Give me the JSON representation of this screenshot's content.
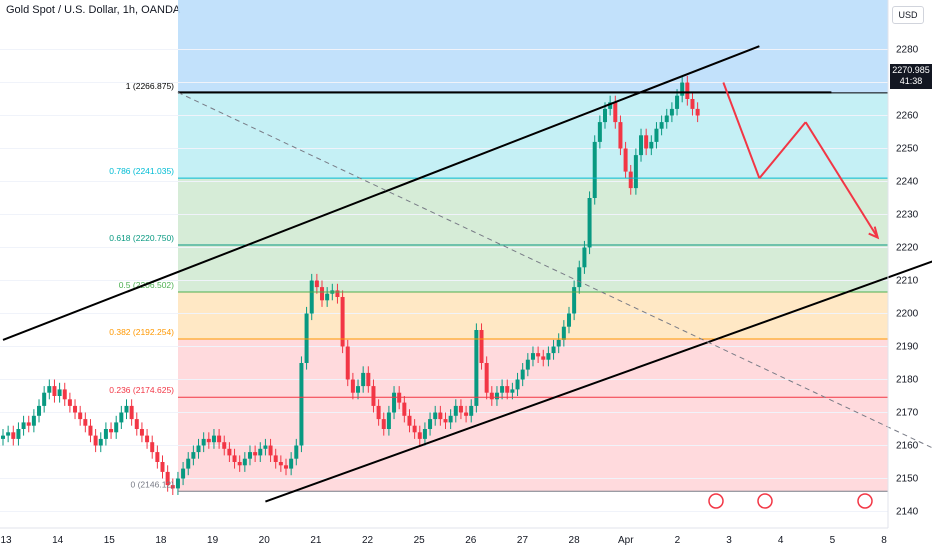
{
  "header": {
    "title": "Gold Spot / U.S. Dollar, 1h, OANDA"
  },
  "currency_button": {
    "label": "USD"
  },
  "price_badge": {
    "price": "2270.985",
    "countdown": "41:38",
    "color": "#131722"
  },
  "colors": {
    "up": "#089981",
    "down": "#f23645",
    "channel": "#000000",
    "projection": "#f23645",
    "dashed": "#787b86",
    "grid": "#f0f3fa"
  },
  "chart_data": {
    "type": "line",
    "title": "Gold Spot / U.S. Dollar, 1h, OANDA",
    "xlabel": "",
    "ylabel": "",
    "ylim": [
      2135,
      2295
    ],
    "x_ticks": [
      "13",
      "14",
      "15",
      "18",
      "19",
      "20",
      "21",
      "22",
      "25",
      "26",
      "27",
      "28",
      "Apr",
      "2",
      "3",
      "4",
      "5",
      "8"
    ],
    "y_ticks": [
      2140,
      2150,
      2160,
      2170,
      2180,
      2190,
      2200,
      2210,
      2220,
      2230,
      2240,
      2250,
      2260,
      2270,
      2280
    ],
    "fib_levels": [
      {
        "label": "1 (2266.875)",
        "value": 2266.875,
        "line": "#000000",
        "fill": "#d1d4dc"
      },
      {
        "label": "0.786 (2241.035)",
        "value": 2241.035,
        "line": "#00bcd4",
        "fill": "#b2ebf2"
      },
      {
        "label": "0.618 (2220.750)",
        "value": 2220.75,
        "line": "#089981",
        "fill": "#c8e6c9"
      },
      {
        "label": "0.5 (2206.502)",
        "value": 2206.502,
        "line": "#4caf50",
        "fill": "#c8e6c9"
      },
      {
        "label": "0.382 (2192.254)",
        "value": 2192.254,
        "line": "#ff9800",
        "fill": "#ffe0b2"
      },
      {
        "label": "0.236 (2174.625)",
        "value": 2174.625,
        "line": "#f23645",
        "fill": "#ffcdd2"
      },
      {
        "label": "0 (2146.12)",
        "value": 2146.12,
        "line": "#787b86",
        "fill": "#ffcdd2"
      }
    ],
    "series": [
      {
        "values": [
          2163,
          2164,
          2162,
          2165,
          2167,
          2166,
          2169,
          2172,
          2176,
          2178,
          2175,
          2177,
          2174,
          2172,
          2170,
          2168,
          2166,
          2163,
          2160,
          2162,
          2165,
          2164,
          2167,
          2170,
          2172,
          2168,
          2165,
          2163,
          2161,
          2158,
          2155,
          2152,
          2148,
          2147,
          2150,
          2153,
          2156,
          2158,
          2160,
          2162,
          2161,
          2163,
          2161,
          2159,
          2157,
          2155,
          2154,
          2156,
          2158,
          2157,
          2159,
          2160,
          2157,
          2155,
          2154,
          2153,
          2156,
          2160,
          2185,
          2200,
          2210,
          2208,
          2204,
          2206,
          2207,
          2205,
          2190,
          2180,
          2176,
          2178,
          2182,
          2178,
          2172,
          2168,
          2165,
          2170,
          2176,
          2173,
          2169,
          2166,
          2164,
          2162,
          2165,
          2168,
          2170,
          2168,
          2167,
          2169,
          2172,
          2170,
          2169,
          2172,
          2195,
          2185,
          2176,
          2174,
          2176,
          2178,
          2176,
          2177,
          2180,
          2183,
          2186,
          2188,
          2187,
          2186,
          2188,
          2190,
          2192,
          2196,
          2200,
          2208,
          2214,
          2220,
          2235,
          2252,
          2258,
          2262,
          2264,
          2258,
          2250,
          2243,
          2238,
          2248,
          2254,
          2250,
          2252,
          2256,
          2258,
          2260,
          2262,
          2266,
          2270,
          2265,
          2262,
          2260
        ]
      }
    ],
    "channel": {
      "upper": [
        [
          0,
          2192
        ],
        [
          147,
          2281
        ]
      ],
      "lower": [
        [
          51,
          2143
        ],
        [
          181,
          2216
        ]
      ],
      "horizontal": [
        [
          34,
          2267
        ],
        [
          161,
          2267
        ]
      ]
    },
    "dashed_line": [
      [
        34,
        2267
      ],
      [
        181,
        2159
      ]
    ],
    "projection": [
      [
        140,
        2270
      ],
      [
        147,
        2241
      ],
      [
        156,
        2258
      ],
      [
        170,
        2223
      ]
    ]
  }
}
